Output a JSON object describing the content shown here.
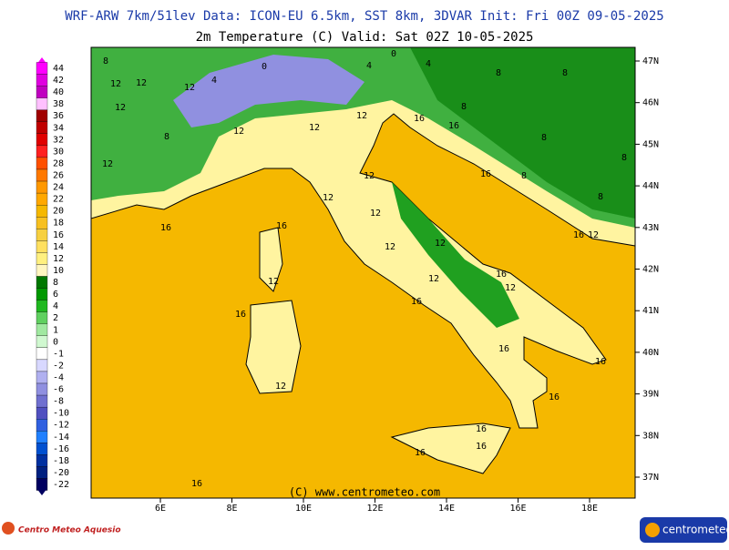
{
  "header": {
    "title": "WRF-ARW 7km/51lev  Data: ICON-EU 6.5km, SST 8km, 3DVAR  Init: Fri 00Z 09-05-2025",
    "subtitle": "2m Temperature (C)  Valid: Sat 02Z 10-05-2025"
  },
  "legend": {
    "levels": [
      44,
      42,
      40,
      38,
      36,
      34,
      32,
      30,
      28,
      26,
      24,
      22,
      20,
      18,
      16,
      14,
      12,
      10,
      8,
      6,
      4,
      2,
      1,
      0,
      -1,
      -2,
      -4,
      -6,
      -8,
      -10,
      -12,
      -14,
      -16,
      -18,
      -20,
      -22
    ],
    "colors": [
      "#ff00ff",
      "#e000e0",
      "#c000c0",
      "#ffc0ff",
      "#a00000",
      "#c00000",
      "#e00000",
      "#ff2020",
      "#ff5000",
      "#ff7800",
      "#ff9800",
      "#ffa800",
      "#f5b800",
      "#f7c020",
      "#f7d040",
      "#ffe060",
      "#fff080",
      "#fff6c0",
      "#007800",
      "#009800",
      "#20b820",
      "#60d060",
      "#a0e8a0",
      "#d0f8d0",
      "#ffffff",
      "#d8d8ff",
      "#b0b0f0",
      "#9090e0",
      "#7070d0",
      "#5050c0",
      "#3060e0",
      "#2080ff",
      "#0050d0",
      "#0030a0",
      "#002080",
      "#000060"
    ]
  },
  "map": {
    "lat_labels": [
      "47N",
      "46N",
      "45N",
      "44N",
      "43N",
      "42N",
      "41N",
      "40N",
      "39N",
      "38N",
      "37N"
    ],
    "lon_labels": [
      "6E",
      "8E",
      "10E",
      "12E",
      "14E",
      "16E",
      "18E"
    ],
    "credit": "(C) www.centrometeo.com",
    "contour_labels": [
      8,
      12,
      4,
      12,
      0,
      4,
      8,
      4,
      0,
      12,
      12,
      12,
      16,
      12,
      8,
      12,
      12,
      16,
      16,
      12,
      12,
      12,
      16,
      12,
      12,
      16,
      12,
      12,
      16,
      12,
      16,
      16,
      16,
      12,
      16,
      16,
      16,
      16,
      16,
      8,
      8,
      8,
      8,
      8,
      8,
      16,
      12,
      16
    ]
  },
  "footer": {
    "left_logo": "Centro Meteo Aquesio",
    "right_logo": "centrometeo"
  }
}
